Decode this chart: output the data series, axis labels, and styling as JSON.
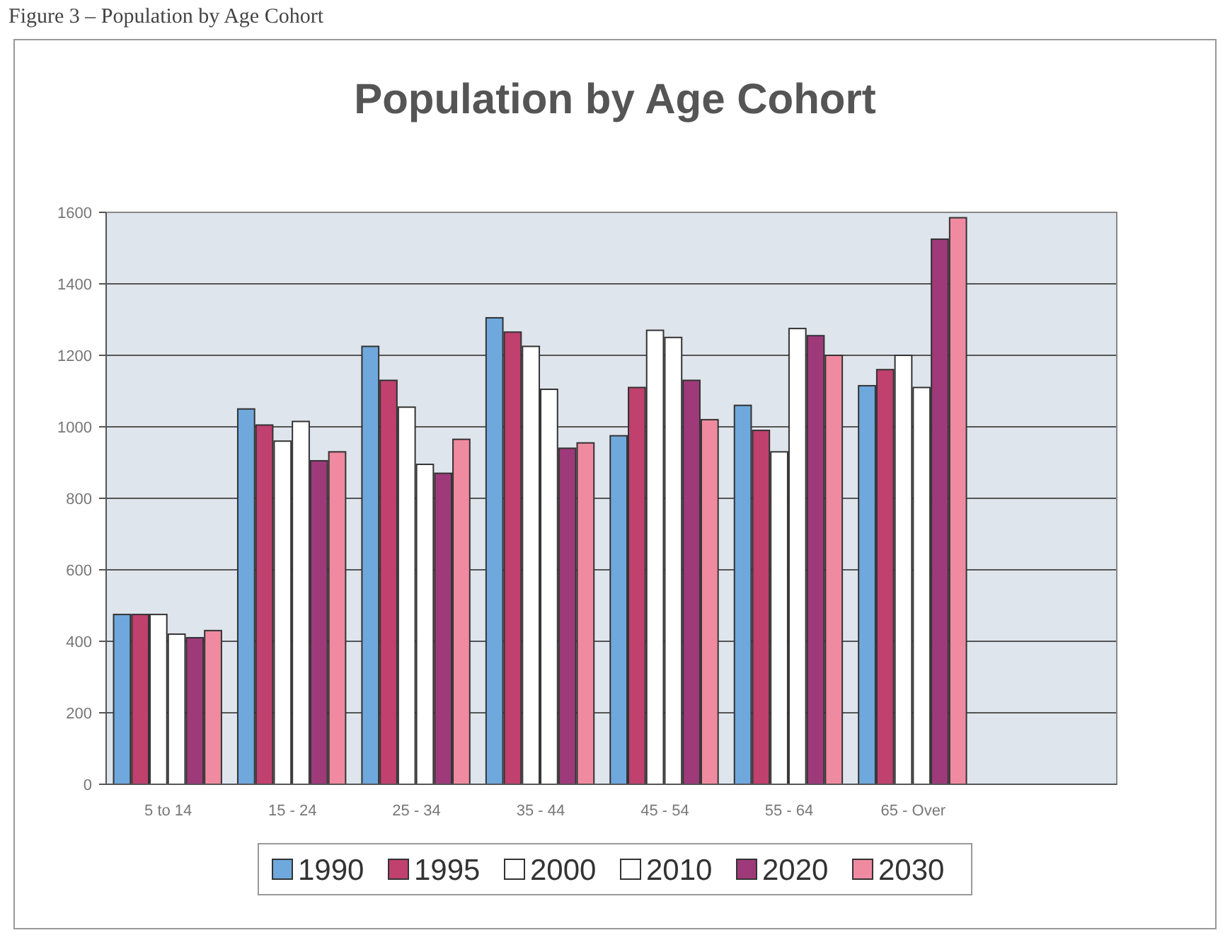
{
  "chart_data": {
    "type": "bar",
    "title": "Population by Age Cohort",
    "annotations": [
      "Figure 3 – Population by Age Cohort"
    ],
    "categories": [
      "5 to 14",
      "15 - 24",
      "25 - 34",
      "35 - 44",
      "45 - 54",
      "55 - 64",
      "65 - Over"
    ],
    "series": [
      {
        "name": "1990",
        "color": "#6fa8dc",
        "values": [
          475,
          1050,
          1225,
          1305,
          975,
          1060,
          1115
        ]
      },
      {
        "name": "1995",
        "color": "#c0406e",
        "values": [
          475,
          1005,
          1130,
          1265,
          1110,
          990,
          1160
        ]
      },
      {
        "name": "2000",
        "color": "#ffffff",
        "values": [
          475,
          960,
          1055,
          1225,
          1270,
          930,
          1200
        ]
      },
      {
        "name": "2010",
        "color": "#ffffff",
        "values": [
          420,
          1015,
          895,
          1105,
          1250,
          1275,
          1110
        ]
      },
      {
        "name": "2020",
        "color": "#9e3a7a",
        "values": [
          410,
          905,
          870,
          940,
          1130,
          1255,
          1525
        ]
      },
      {
        "name": "2030",
        "color": "#f08aa0",
        "values": [
          430,
          930,
          965,
          955,
          1020,
          1200,
          1585
        ]
      }
    ],
    "ylim": [
      0,
      1600
    ],
    "yticks": [
      0,
      200,
      400,
      600,
      800,
      1000,
      1200,
      1400,
      1600
    ],
    "grid": "y",
    "legend": "bottom"
  }
}
